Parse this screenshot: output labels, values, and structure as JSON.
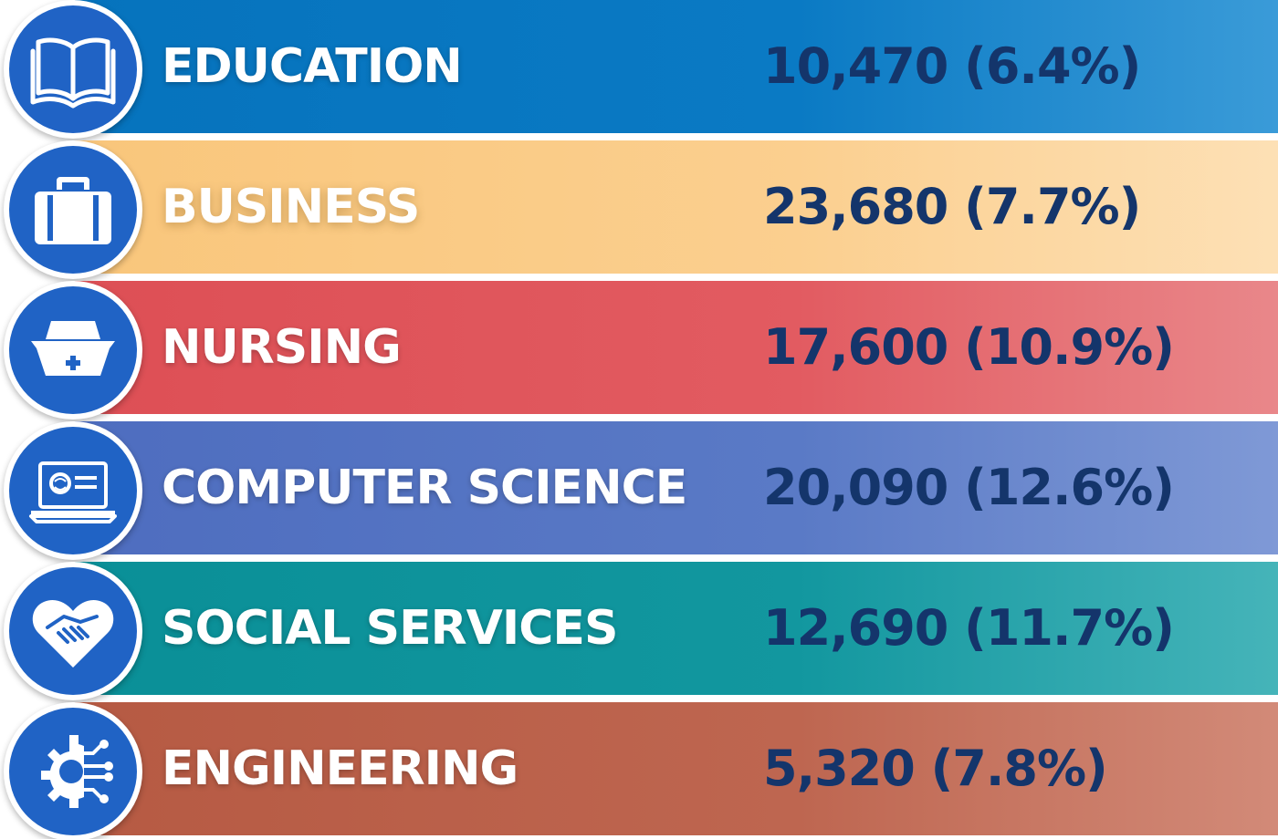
{
  "rows": [
    {
      "label": "EDUCATION",
      "value": "10,470 (6.4%)",
      "icon": "open-book-icon"
    },
    {
      "label": "BUSINESS",
      "value": "23,680 (7.7%)",
      "icon": "briefcase-icon"
    },
    {
      "label": "NURSING",
      "value": "17,600 (10.9%)",
      "icon": "nurse-cap-icon"
    },
    {
      "label": "COMPUTER SCIENCE",
      "value": "20,090 (12.6%)",
      "icon": "laptop-icon"
    },
    {
      "label": "SOCIAL SERVICES",
      "value": "12,690 (11.7%)",
      "icon": "handshake-heart-icon"
    },
    {
      "label": "ENGINEERING",
      "value": "5,320 (7.8%)",
      "icon": "gear-circuit-icon"
    }
  ],
  "colors": {
    "education": "#0673bd",
    "business": "#f9c67b",
    "nursing": "#dd4f55",
    "computer_science": "#4e6dbf",
    "social_services": "#0a8f97",
    "engineering": "#b65a43",
    "icon_circle": "#2063c5",
    "value_text": "#14356b",
    "label_text": "#ffffff"
  }
}
